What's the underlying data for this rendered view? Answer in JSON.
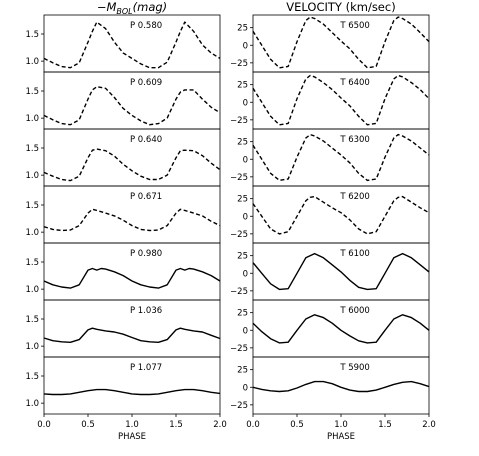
{
  "chart_data": {
    "type": "line",
    "columns": [
      {
        "title_main": "−M",
        "title_sub": "BOL",
        "title_unit": "(mag)",
        "xlabel": "PHASE",
        "xticks": [
          "0.0",
          "0.5",
          "1.0",
          "1.5",
          "2.0"
        ],
        "yticks": [
          "1.0",
          "1.5"
        ],
        "ylim": [
          0.8,
          1.85
        ],
        "xlim": [
          0.0,
          2.0
        ],
        "panels": [
          {
            "label": "P 0.580",
            "dashed": true,
            "x": [
              0,
              0.1,
              0.2,
              0.3,
              0.4,
              0.5,
              0.55,
              0.6,
              0.7,
              0.8,
              0.9,
              1.0,
              1.1,
              1.2,
              1.3,
              1.4,
              1.5,
              1.55,
              1.6,
              1.7,
              1.8,
              1.9,
              2.0
            ],
            "y": [
              1.05,
              0.97,
              0.9,
              0.88,
              0.97,
              1.35,
              1.55,
              1.72,
              1.6,
              1.35,
              1.15,
              1.05,
              0.95,
              0.88,
              0.88,
              0.98,
              1.35,
              1.55,
              1.72,
              1.55,
              1.3,
              1.15,
              1.05
            ]
          },
          {
            "label": "P 0.609",
            "dashed": true,
            "x": [
              0,
              0.1,
              0.2,
              0.3,
              0.4,
              0.5,
              0.55,
              0.6,
              0.7,
              0.8,
              0.9,
              1.0,
              1.1,
              1.2,
              1.3,
              1.4,
              1.5,
              1.55,
              1.6,
              1.7,
              1.8,
              1.9,
              2.0
            ],
            "y": [
              1.05,
              0.97,
              0.9,
              0.88,
              0.97,
              1.35,
              1.52,
              1.58,
              1.55,
              1.38,
              1.18,
              1.05,
              0.95,
              0.88,
              0.9,
              1.0,
              1.35,
              1.48,
              1.52,
              1.52,
              1.35,
              1.2,
              1.1
            ]
          },
          {
            "label": "P 0.640",
            "dashed": true,
            "x": [
              0,
              0.1,
              0.2,
              0.3,
              0.4,
              0.5,
              0.55,
              0.6,
              0.7,
              0.8,
              0.9,
              1.0,
              1.1,
              1.2,
              1.3,
              1.4,
              1.5,
              1.55,
              1.6,
              1.7,
              1.8,
              1.9,
              2.0
            ],
            "y": [
              1.05,
              0.98,
              0.92,
              0.9,
              0.98,
              1.32,
              1.46,
              1.48,
              1.45,
              1.35,
              1.2,
              1.08,
              0.98,
              0.92,
              0.92,
              1.0,
              1.32,
              1.45,
              1.46,
              1.45,
              1.36,
              1.22,
              1.1
            ]
          },
          {
            "label": "P 0.671",
            "dashed": true,
            "x": [
              0,
              0.1,
              0.2,
              0.3,
              0.4,
              0.5,
              0.55,
              0.6,
              0.7,
              0.8,
              0.9,
              1.0,
              1.1,
              1.2,
              1.3,
              1.4,
              1.5,
              1.55,
              1.6,
              1.7,
              1.8,
              1.9,
              2.0
            ],
            "y": [
              1.1,
              1.05,
              1.03,
              1.04,
              1.12,
              1.35,
              1.42,
              1.4,
              1.35,
              1.3,
              1.22,
              1.12,
              1.05,
              1.03,
              1.04,
              1.12,
              1.35,
              1.42,
              1.4,
              1.35,
              1.3,
              1.2,
              1.12
            ]
          },
          {
            "label": "P 0.980",
            "dashed": false,
            "x": [
              0,
              0.1,
              0.2,
              0.3,
              0.4,
              0.5,
              0.55,
              0.6,
              0.65,
              0.7,
              0.8,
              0.9,
              1.0,
              1.1,
              1.2,
              1.3,
              1.4,
              1.5,
              1.55,
              1.6,
              1.65,
              1.7,
              1.8,
              1.9,
              2.0
            ],
            "y": [
              1.15,
              1.08,
              1.04,
              1.02,
              1.08,
              1.35,
              1.38,
              1.35,
              1.38,
              1.37,
              1.32,
              1.25,
              1.15,
              1.08,
              1.04,
              1.02,
              1.08,
              1.35,
              1.38,
              1.35,
              1.38,
              1.37,
              1.32,
              1.25,
              1.15
            ]
          },
          {
            "label": "P 1.036",
            "dashed": false,
            "x": [
              0,
              0.1,
              0.2,
              0.3,
              0.4,
              0.5,
              0.55,
              0.6,
              0.7,
              0.8,
              0.9,
              1.0,
              1.1,
              1.2,
              1.3,
              1.4,
              1.5,
              1.55,
              1.6,
              1.7,
              1.8,
              1.9,
              2.0
            ],
            "y": [
              1.15,
              1.1,
              1.08,
              1.07,
              1.12,
              1.3,
              1.33,
              1.31,
              1.28,
              1.26,
              1.22,
              1.16,
              1.1,
              1.08,
              1.07,
              1.12,
              1.3,
              1.33,
              1.31,
              1.28,
              1.26,
              1.2,
              1.14
            ]
          },
          {
            "label": "P 1.077",
            "dashed": false,
            "x": [
              0,
              0.1,
              0.2,
              0.3,
              0.4,
              0.5,
              0.6,
              0.7,
              0.8,
              0.9,
              1.0,
              1.1,
              1.2,
              1.3,
              1.4,
              1.5,
              1.6,
              1.7,
              1.8,
              1.9,
              2.0
            ],
            "y": [
              1.17,
              1.16,
              1.16,
              1.17,
              1.2,
              1.23,
              1.25,
              1.25,
              1.23,
              1.2,
              1.17,
              1.16,
              1.16,
              1.17,
              1.2,
              1.23,
              1.25,
              1.25,
              1.23,
              1.2,
              1.18
            ]
          }
        ]
      },
      {
        "title_main": "VELOCITY (km/sec)",
        "title_sub": "",
        "title_unit": "",
        "xlabel": "PHASE",
        "xticks": [
          "0.0",
          "0.5",
          "1.0",
          "1.5",
          "2.0"
        ],
        "yticks": [
          "-25",
          "0",
          "25"
        ],
        "ylim": [
          -38,
          43
        ],
        "xlim": [
          0.0,
          2.0
        ],
        "panels": [
          {
            "label": "T 6500",
            "dashed": true,
            "x": [
              0,
              0.1,
              0.2,
              0.3,
              0.4,
              0.5,
              0.6,
              0.65,
              0.7,
              0.8,
              0.9,
              1.0,
              1.1,
              1.2,
              1.3,
              1.4,
              1.5,
              1.6,
              1.65,
              1.7,
              1.8,
              1.9,
              2.0
            ],
            "y": [
              20,
              0,
              -20,
              -32,
              -30,
              5,
              35,
              40,
              38,
              30,
              18,
              6,
              -5,
              -20,
              -32,
              -30,
              5,
              35,
              40,
              38,
              30,
              18,
              5
            ]
          },
          {
            "label": "T 6400",
            "dashed": true,
            "x": [
              0,
              0.1,
              0.2,
              0.3,
              0.4,
              0.5,
              0.6,
              0.65,
              0.7,
              0.8,
              0.9,
              1.0,
              1.1,
              1.2,
              1.3,
              1.4,
              1.5,
              1.6,
              1.65,
              1.7,
              1.8,
              1.9,
              2.0
            ],
            "y": [
              20,
              0,
              -20,
              -32,
              -30,
              5,
              33,
              38,
              36,
              28,
              18,
              6,
              -5,
              -20,
              -32,
              -30,
              5,
              33,
              38,
              36,
              28,
              18,
              5
            ]
          },
          {
            "label": "T 6300",
            "dashed": true,
            "x": [
              0,
              0.1,
              0.2,
              0.3,
              0.4,
              0.5,
              0.6,
              0.65,
              0.7,
              0.8,
              0.9,
              1.0,
              1.1,
              1.2,
              1.3,
              1.4,
              1.5,
              1.6,
              1.65,
              1.7,
              1.8,
              1.9,
              2.0
            ],
            "y": [
              20,
              0,
              -20,
              -30,
              -28,
              3,
              30,
              35,
              33,
              26,
              16,
              6,
              -5,
              -20,
              -30,
              -28,
              3,
              30,
              35,
              33,
              26,
              16,
              6
            ]
          },
          {
            "label": "T 6200",
            "dashed": true,
            "x": [
              0,
              0.1,
              0.2,
              0.3,
              0.4,
              0.5,
              0.6,
              0.65,
              0.7,
              0.8,
              0.9,
              1.0,
              1.1,
              1.2,
              1.3,
              1.4,
              1.5,
              1.6,
              1.65,
              1.7,
              1.8,
              1.9,
              2.0
            ],
            "y": [
              18,
              0,
              -18,
              -25,
              -22,
              0,
              22,
              27,
              28,
              20,
              12,
              5,
              -5,
              -18,
              -25,
              -22,
              0,
              22,
              27,
              28,
              20,
              12,
              5
            ]
          },
          {
            "label": "T 6100",
            "dashed": false,
            "x": [
              0,
              0.1,
              0.2,
              0.3,
              0.4,
              0.5,
              0.6,
              0.7,
              0.8,
              0.9,
              1.0,
              1.1,
              1.2,
              1.3,
              1.4,
              1.5,
              1.6,
              1.7,
              1.8,
              1.9,
              2.0
            ],
            "y": [
              15,
              0,
              -15,
              -23,
              -22,
              0,
              22,
              28,
              22,
              12,
              2,
              -10,
              -20,
              -23,
              -22,
              0,
              22,
              28,
              22,
              12,
              2
            ]
          },
          {
            "label": "T 6000",
            "dashed": false,
            "x": [
              0,
              0.1,
              0.2,
              0.3,
              0.4,
              0.5,
              0.6,
              0.7,
              0.8,
              0.9,
              1.0,
              1.1,
              1.2,
              1.3,
              1.4,
              1.5,
              1.6,
              1.7,
              1.8,
              1.9,
              2.0
            ],
            "y": [
              10,
              -2,
              -12,
              -18,
              -17,
              0,
              16,
              22,
              18,
              10,
              0,
              -8,
              -15,
              -18,
              -17,
              0,
              16,
              22,
              18,
              10,
              0
            ]
          },
          {
            "label": "T 5900",
            "dashed": false,
            "x": [
              0,
              0.1,
              0.2,
              0.3,
              0.4,
              0.5,
              0.6,
              0.7,
              0.8,
              0.9,
              1.0,
              1.1,
              1.2,
              1.3,
              1.4,
              1.5,
              1.6,
              1.7,
              1.8,
              1.9,
              2.0
            ],
            "y": [
              0,
              -3,
              -5,
              -6,
              -5,
              -1,
              4,
              8,
              8,
              5,
              0,
              -4,
              -6,
              -6,
              -4,
              0,
              4,
              7,
              8,
              5,
              1
            ]
          }
        ]
      }
    ]
  }
}
